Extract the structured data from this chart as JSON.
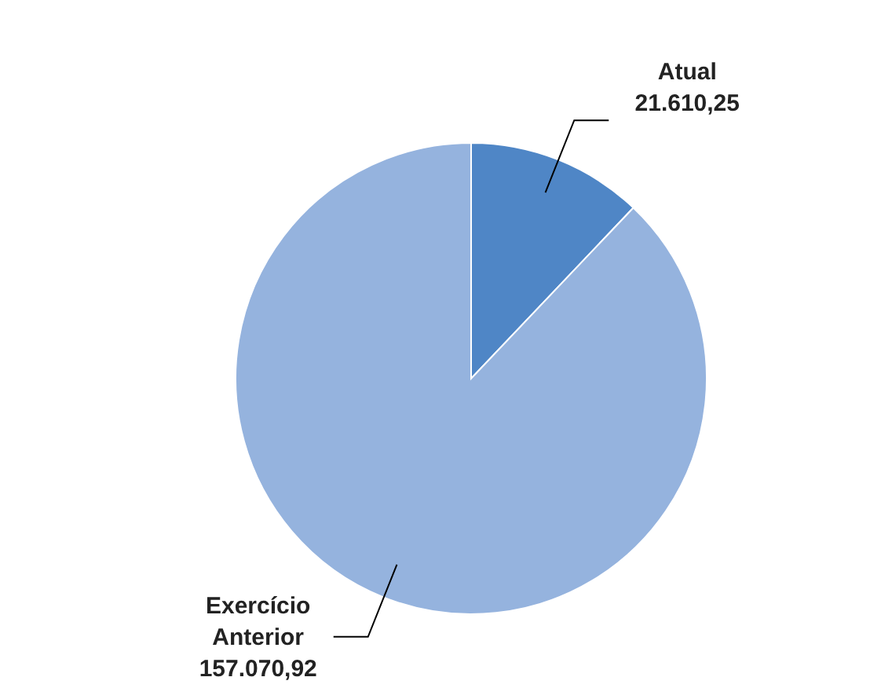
{
  "chart_data": {
    "type": "pie",
    "categories": [
      "Atual",
      "Exercício Anterior"
    ],
    "values": [
      21610.25,
      157070.92
    ],
    "value_labels": [
      "21.610,25",
      "157.070,92"
    ],
    "colors": [
      "#4f86c6",
      "#95b3de"
    ]
  }
}
